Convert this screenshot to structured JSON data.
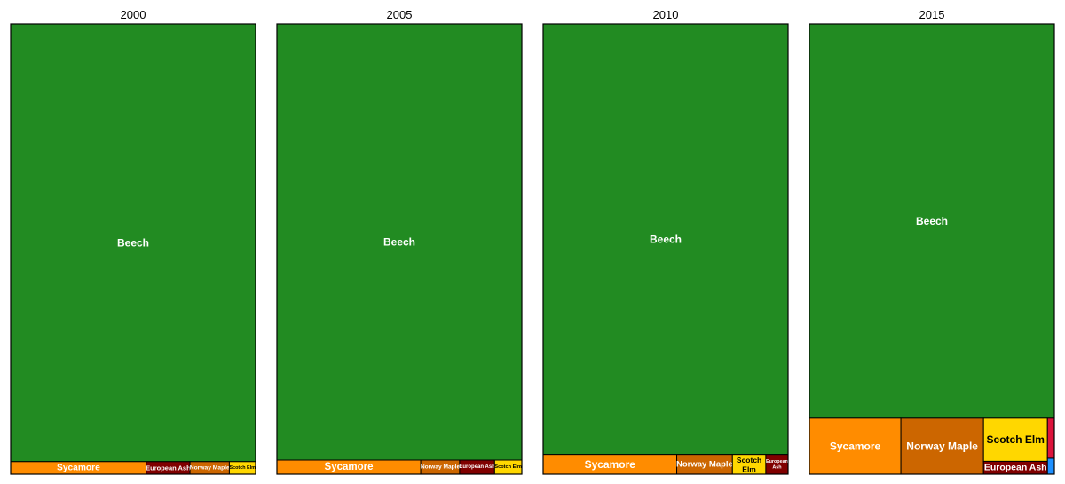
{
  "colors": {
    "Beech": "#228B22",
    "Sycamore": "#FF8C00",
    "Norway Maple": "#CC6600",
    "European Ash": "#800000",
    "Scotch Elm": "#FFD700",
    "Other red": "#DC143C",
    "Other blue": "#1E90FF",
    "border": "#000000",
    "label_light": "#ffffff",
    "label_dark": "#000000"
  },
  "chart_data": [
    {
      "type": "treemap",
      "title": "2000",
      "items": [
        {
          "label": "Beech",
          "value": 97.0
        },
        {
          "label": "Sycamore",
          "value": 1.55
        },
        {
          "label": "European Ash",
          "value": 0.5
        },
        {
          "label": "Norway Maple",
          "value": 0.45
        },
        {
          "label": "Scotch Elm",
          "value": 0.3
        }
      ]
    },
    {
      "type": "treemap",
      "title": "2005",
      "items": [
        {
          "label": "Beech",
          "value": 96.7
        },
        {
          "label": "Sycamore",
          "value": 1.85
        },
        {
          "label": "Norway Maple",
          "value": 0.5
        },
        {
          "label": "European Ash",
          "value": 0.45
        },
        {
          "label": "Scotch Elm",
          "value": 0.35
        }
      ]
    },
    {
      "type": "treemap",
      "title": "2010",
      "items": [
        {
          "label": "Beech",
          "value": 95.5
        },
        {
          "label": "Sycamore",
          "value": 2.4
        },
        {
          "label": "Norway Maple",
          "value": 1.0
        },
        {
          "label": "Scotch Elm",
          "value": 0.6
        },
        {
          "label": "European Ash",
          "value": 0.4
        }
      ]
    },
    {
      "type": "treemap",
      "title": "2015",
      "items": [
        {
          "label": "Beech",
          "value": 87.5
        },
        {
          "label": "Sycamore",
          "value": 4.65
        },
        {
          "label": "Norway Maple",
          "value": 4.2
        },
        {
          "label": "Scotch Elm",
          "value": 2.5
        },
        {
          "label": "European Ash",
          "value": 0.75
        },
        {
          "label": "",
          "value": 0.25,
          "color_key": "Other red"
        },
        {
          "label": "",
          "value": 0.1,
          "color_key": "Other blue"
        }
      ]
    }
  ]
}
